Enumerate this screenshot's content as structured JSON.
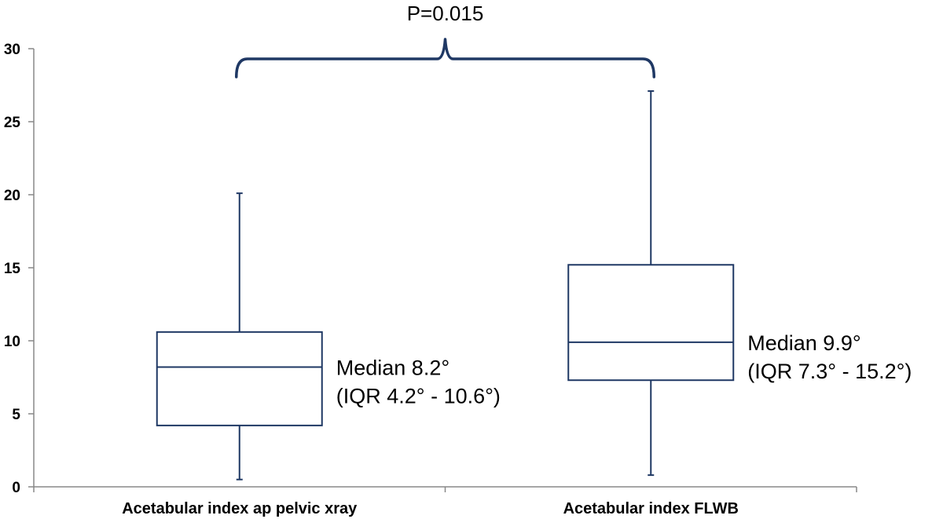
{
  "chart_data": {
    "type": "boxplot",
    "ylim": [
      0,
      30
    ],
    "yticks": [
      0,
      5,
      10,
      15,
      20,
      25,
      30
    ],
    "grid": false,
    "colors": {
      "box": "#1f3864",
      "axis": "#888888",
      "text": "#000000"
    },
    "categories": [
      "Acetabular index ap pelvic xray",
      "Acetabular index FLWB"
    ],
    "boxes": [
      {
        "min": 0.5,
        "q1": 4.2,
        "median": 8.2,
        "q3": 10.6,
        "max": 20.1
      },
      {
        "min": 0.8,
        "q1": 7.3,
        "median": 9.9,
        "q3": 15.2,
        "max": 27.1
      }
    ],
    "annotations": [
      {
        "line1": "Median 8.2°",
        "line2": "(IQR 4.2° - 10.6°)"
      },
      {
        "line1": "Median 9.9°",
        "line2": "(IQR 7.3° - 15.2°)"
      }
    ],
    "significance": {
      "label": "P=0.015"
    }
  }
}
